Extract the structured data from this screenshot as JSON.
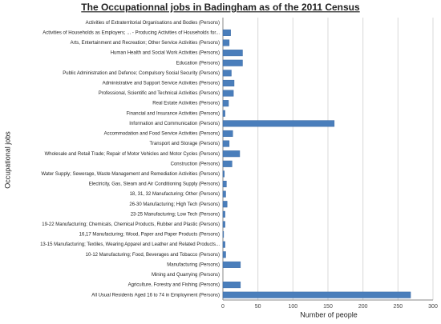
{
  "chart_data": {
    "type": "bar",
    "orientation": "horizontal",
    "title": "The Occupationnal jobs in Badingham as of the 2011 Census",
    "x_label": "Number of people",
    "y_label": "Occupational jobs",
    "categories": [
      "Activities of Extraterritorial Organisations and Bodies (Persons)",
      "Activities of Households as Employers; ... - Producing Activities of Households for...",
      "Arts, Entertainment and Recreation; Other Service Activities (Persons)",
      "Human Health and Social Work Activities (Persons)",
      "Education (Persons)",
      "Public Administration and Defence; Compulsory Social Security (Persons)",
      "Administrative and Support Service Activities (Persons)",
      "Professional, Scientific and Technical Activities (Persons)",
      "Real Estate Activities (Persons)",
      "Financial and Insurance Activities (Persons)",
      "Information and Communication (Persons)",
      "Accommodation and Food Service Activities (Persons)",
      "Transport and Storage (Persons)",
      "Wholesale and Retail Trade; Repair of Motor Vehicles and Motor Cycles (Persons)",
      "Construction (Persons)",
      "Water Supply; Sewerage, Waste Management and Remediation Activities (Persons)",
      "Electricity, Gas, Steam and Air Conditioning Supply (Persons)",
      "18, 31, 32 Manufacturing; Other (Persons)",
      "26-30 Manufacturing; High Tech (Persons)",
      "23-25 Manufacturing; Low Tech (Persons)",
      "19-22 Manufacturing; Chemicals, Chemical Products, Rubber and Plastic (Persons)",
      "16,17 Manufacturing; Wood, Paper and Paper Products (Persons)",
      "13-15 Manufacturing; Textiles, Wearing Apparel and Leather and Related Products...",
      "10-12 Manufacturing; Food, Beverages and Tobacco (Persons)",
      "Manufacturing (Persons)",
      "Mining and Quarrying (Persons)",
      "Agriculture, Forestry and Fishing (Persons)",
      "All Usual Residents Aged 16 to 74 in Employment (Persons)"
    ],
    "values": [
      0,
      11,
      9,
      28,
      28,
      12,
      16,
      15,
      8,
      3,
      159,
      14,
      9,
      24,
      13,
      2,
      5,
      4,
      6,
      3,
      3,
      1,
      3,
      4,
      25,
      0,
      25,
      268
    ],
    "color": "#4a7ebb",
    "xlim": [
      0,
      300
    ],
    "xticks": [
      0,
      50,
      100,
      150,
      200,
      250,
      300
    ],
    "grid": true
  }
}
